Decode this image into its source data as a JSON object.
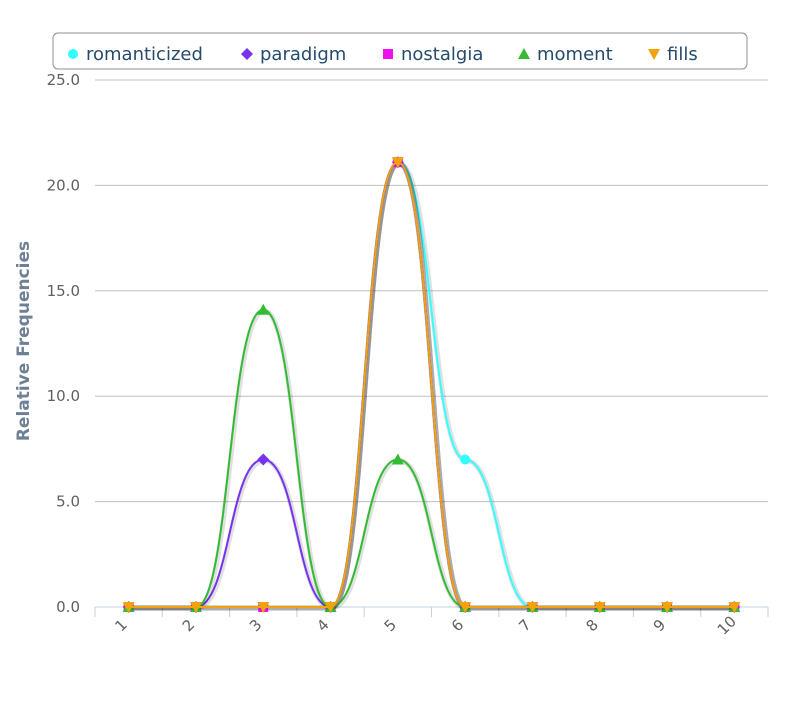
{
  "chart_data": {
    "type": "line",
    "smooth": true,
    "x": [
      1,
      2,
      3,
      4,
      5,
      6,
      7,
      8,
      9,
      10
    ],
    "categories": [
      "1",
      "2",
      "3",
      "4",
      "5",
      "6",
      "7",
      "8",
      "9",
      "10"
    ],
    "ylabel": "Relative Frequencies",
    "ylim": [
      0,
      25
    ],
    "yticks": [
      0,
      5,
      10,
      15,
      20,
      25
    ],
    "ytick_labels": [
      "0.0",
      "5.0",
      "10.0",
      "15.0",
      "20.0",
      "25.0"
    ],
    "grid": true,
    "legend_position": "top",
    "series": [
      {
        "name": "romanticized",
        "color": "#33ffff",
        "marker": "circle",
        "values": [
          0,
          0,
          0,
          0,
          21.1,
          7.0,
          0,
          0,
          0,
          0
        ]
      },
      {
        "name": "paradigm",
        "color": "#7733ee",
        "marker": "diamond",
        "values": [
          0,
          0,
          7.0,
          0,
          21.1,
          0,
          0,
          0,
          0,
          0
        ]
      },
      {
        "name": "nostalgia",
        "color": "#ee11ee",
        "marker": "square",
        "values": [
          0,
          0,
          0,
          0,
          21.1,
          0,
          0,
          0,
          0,
          0
        ]
      },
      {
        "name": "moment",
        "color": "#33bb33",
        "marker": "triangle",
        "values": [
          0,
          0,
          14.1,
          0,
          7.0,
          0,
          0,
          0,
          0,
          0
        ]
      },
      {
        "name": "fills",
        "color": "#f0a30a",
        "marker": "triangle-down",
        "values": [
          0,
          0,
          0,
          0,
          21.1,
          0,
          0,
          0,
          0,
          0
        ]
      }
    ]
  }
}
